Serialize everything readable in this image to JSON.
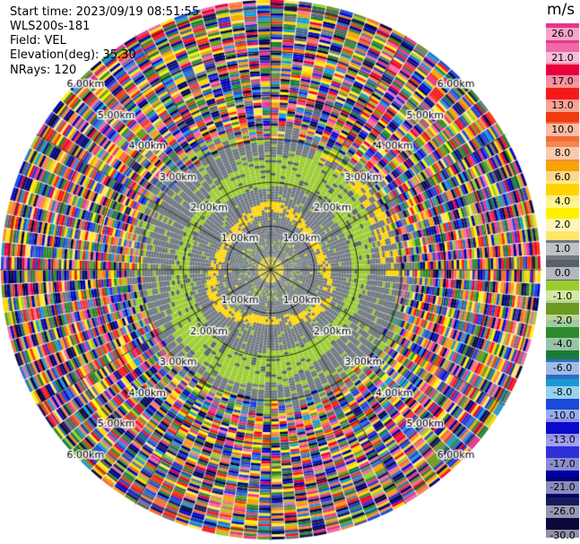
{
  "header": {
    "start_time": "Start time: 2023/09/19 08:51:55",
    "instrument": "WLS200s-181",
    "field": "Field: VEL",
    "elevation": "Elevation(deg): 35.30",
    "nrays": "NRays: 120"
  },
  "colorbar": {
    "unit": "m/s",
    "ticks": [
      "26.0",
      "21.0",
      "17.0",
      "13.0",
      "10.0",
      "8.0",
      "6.0",
      "4.0",
      "2.0",
      "1.0",
      "0.0",
      "-1.0",
      "-2.0",
      "-4.0",
      "-6.0",
      "-8.0",
      "-10.0",
      "-13.0",
      "-17.0",
      "-21.0",
      "-26.0",
      "-30.0"
    ],
    "colors": [
      "#e8358a",
      "#f06aa8",
      "#e8003a",
      "#f41a1a",
      "#f03a10",
      "#f36a3a",
      "#f5884a",
      "#f5a400",
      "#ffd400",
      "#fff000",
      "#ffe66a",
      "#707880",
      "#5a6068",
      "#9acc30",
      "#6a9a20",
      "#2e8a2e",
      "#1a7a3a",
      "#2e6ec8",
      "#1a9ad4",
      "#1a4ad8",
      "#0a0acc",
      "#3030d8",
      "#0000a0",
      "#00006a",
      "#1a1a5a",
      "#0a0a3a"
    ]
  },
  "chart_data": {
    "type": "ppi-radar",
    "field": "VEL",
    "nrays": 120,
    "range_rings_km": [
      1.0,
      2.0,
      3.0,
      4.0,
      5.0,
      6.0
    ],
    "range_ring_labels": [
      "1.00km",
      "2.00km",
      "3.00km",
      "4.00km",
      "5.00km",
      "6.00km"
    ],
    "near_field_velocity_ms": 0.0,
    "green_ring_velocity_ms": -2.0,
    "yellow_ring_velocity_ms": 2.0,
    "far_field": "noise"
  }
}
